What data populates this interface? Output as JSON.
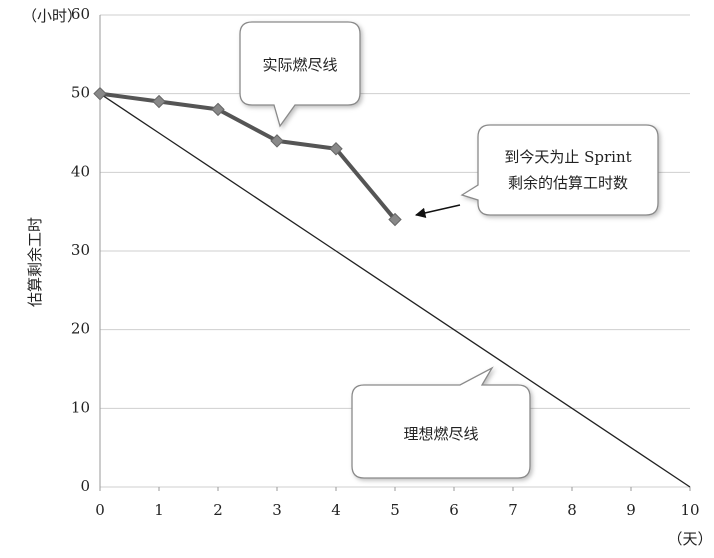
{
  "chart_data": {
    "type": "line",
    "y_unit": "（小时）",
    "x_unit": "（天）",
    "ylabel": "估算剩余工时",
    "x": [
      0,
      1,
      2,
      3,
      4,
      5,
      6,
      7,
      8,
      9,
      10
    ],
    "series": [
      {
        "name": "实际燃尽线",
        "color": "#555555",
        "values": [
          50,
          49,
          48,
          44,
          43,
          34,
          null,
          null,
          null,
          null,
          null
        ]
      },
      {
        "name": "理想燃尽线",
        "color": "#222222",
        "values": [
          50,
          45,
          40,
          35,
          30,
          25,
          20,
          15,
          10,
          5,
          0
        ]
      }
    ],
    "annotation": [
      "到今天为止 Sprint",
      "剩余的估算工时数"
    ],
    "xlim": [
      0,
      10
    ],
    "xticks": [
      0,
      1,
      2,
      3,
      4,
      5,
      6,
      7,
      8,
      9,
      10
    ],
    "ylim": [
      0,
      60
    ],
    "yticks": [
      0,
      10,
      20,
      30,
      40,
      50,
      60
    ],
    "grid": true
  }
}
